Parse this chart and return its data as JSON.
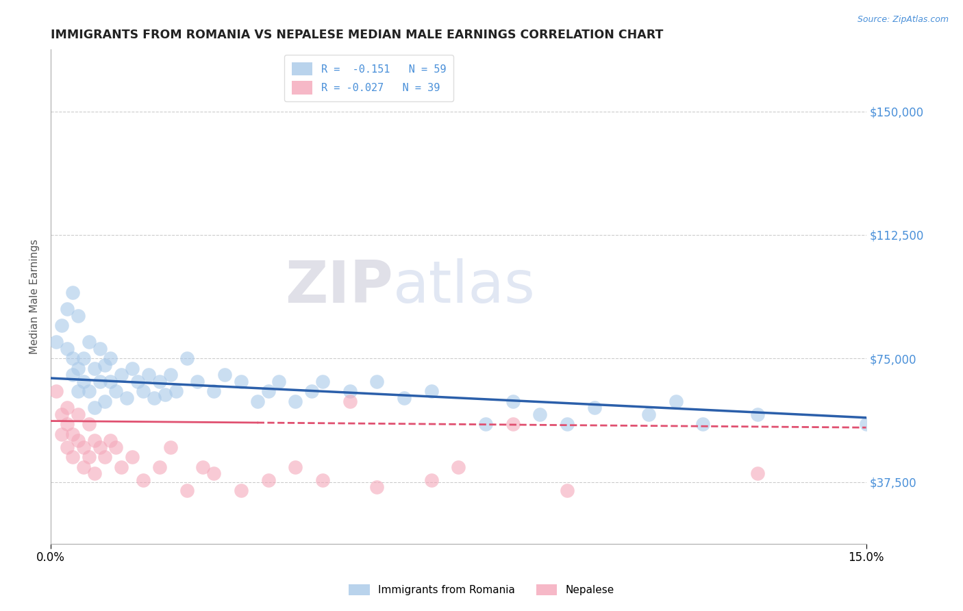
{
  "title": "IMMIGRANTS FROM ROMANIA VS NEPALESE MEDIAN MALE EARNINGS CORRELATION CHART",
  "source": "Source: ZipAtlas.com",
  "ylabel": "Median Male Earnings",
  "xlim": [
    0.0,
    0.15
  ],
  "ylim": [
    18750,
    168750
  ],
  "yticks": [
    37500,
    75000,
    112500,
    150000
  ],
  "ytick_labels": [
    "$37,500",
    "$75,000",
    "$112,500",
    "$150,000"
  ],
  "grid_ticks": [
    37500,
    75000,
    112500,
    150000
  ],
  "legend_entry1": "R =  -0.151   N = 59",
  "legend_entry2": "R = -0.027   N = 39",
  "legend_label1": "Immigrants from Romania",
  "legend_label2": "Nepalese",
  "color_romania": "#a8c8e8",
  "color_nepalese": "#f4a7b9",
  "color_trend_romania": "#2b5faa",
  "color_trend_nepalese": "#e05070",
  "watermark_zip": "ZIP",
  "watermark_atlas": "atlas",
  "romania_x": [
    0.001,
    0.002,
    0.003,
    0.003,
    0.004,
    0.004,
    0.004,
    0.005,
    0.005,
    0.005,
    0.006,
    0.006,
    0.007,
    0.007,
    0.008,
    0.008,
    0.009,
    0.009,
    0.01,
    0.01,
    0.011,
    0.011,
    0.012,
    0.013,
    0.014,
    0.015,
    0.016,
    0.017,
    0.018,
    0.019,
    0.02,
    0.021,
    0.022,
    0.023,
    0.025,
    0.027,
    0.03,
    0.032,
    0.035,
    0.038,
    0.04,
    0.042,
    0.045,
    0.048,
    0.05,
    0.055,
    0.06,
    0.065,
    0.07,
    0.08,
    0.085,
    0.09,
    0.095,
    0.1,
    0.11,
    0.115,
    0.12,
    0.13,
    0.15
  ],
  "romania_y": [
    80000,
    85000,
    90000,
    78000,
    95000,
    75000,
    70000,
    88000,
    72000,
    65000,
    75000,
    68000,
    80000,
    65000,
    72000,
    60000,
    78000,
    68000,
    73000,
    62000,
    68000,
    75000,
    65000,
    70000,
    63000,
    72000,
    68000,
    65000,
    70000,
    63000,
    68000,
    64000,
    70000,
    65000,
    75000,
    68000,
    65000,
    70000,
    68000,
    62000,
    65000,
    68000,
    62000,
    65000,
    68000,
    65000,
    68000,
    63000,
    65000,
    55000,
    62000,
    58000,
    55000,
    60000,
    58000,
    62000,
    55000,
    58000,
    55000
  ],
  "nepalese_x": [
    0.001,
    0.002,
    0.002,
    0.003,
    0.003,
    0.003,
    0.004,
    0.004,
    0.005,
    0.005,
    0.006,
    0.006,
    0.007,
    0.007,
    0.008,
    0.008,
    0.009,
    0.01,
    0.011,
    0.012,
    0.013,
    0.015,
    0.017,
    0.02,
    0.022,
    0.025,
    0.028,
    0.03,
    0.035,
    0.04,
    0.045,
    0.05,
    0.055,
    0.06,
    0.07,
    0.075,
    0.085,
    0.095,
    0.13
  ],
  "nepalese_y": [
    65000,
    58000,
    52000,
    60000,
    55000,
    48000,
    52000,
    45000,
    58000,
    50000,
    48000,
    42000,
    55000,
    45000,
    50000,
    40000,
    48000,
    45000,
    50000,
    48000,
    42000,
    45000,
    38000,
    42000,
    48000,
    35000,
    42000,
    40000,
    35000,
    38000,
    42000,
    38000,
    62000,
    36000,
    38000,
    42000,
    55000,
    35000,
    40000
  ],
  "trend_romania_x0": 0.0,
  "trend_romania_y0": 69000,
  "trend_romania_x1": 0.15,
  "trend_romania_y1": 57000,
  "trend_nepalese_x0": 0.0,
  "trend_nepalese_y0": 56000,
  "trend_nepalese_x1": 0.15,
  "trend_nepalese_y1": 54000,
  "trend_nepalese_solid_end": 0.038
}
